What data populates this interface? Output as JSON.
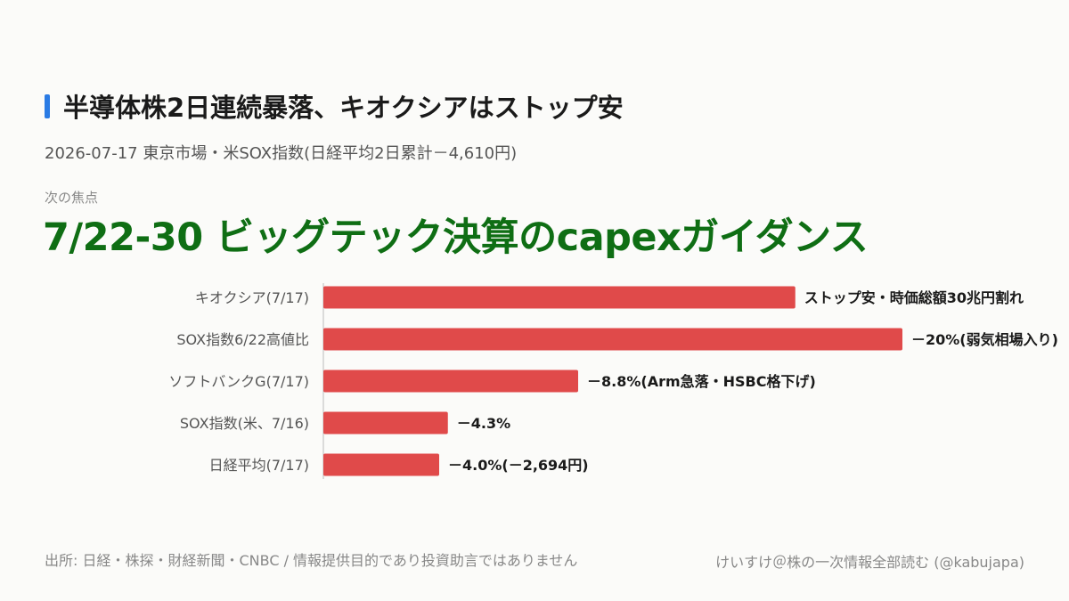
{
  "header": {
    "title": "半導体株2日連続暴落、キオクシアはストップ安",
    "subtitle": "2026-07-17 東京市場・米SOX指数(日経平均2日累計－4,610円)",
    "focus_label": "次の焦点",
    "focus_text": "7/22-30 ビッグテック決算のcapexガイダンス"
  },
  "chart_data": {
    "type": "bar",
    "orientation": "horizontal",
    "categories": [
      "キオクシア(7/17)",
      "SOX指数6/22高値比",
      "ソフトバンクG(7/17)",
      "SOX指数(米、7/16)",
      "日経平均(7/17)"
    ],
    "values": [
      16.3,
      20,
      8.8,
      4.3,
      4.0
    ],
    "value_labels": [
      "ストップ安・時価総額30兆円割れ",
      "－20%(弱気相場入り)",
      "－8.8%(Arm急落・HSBC格下げ)",
      "－4.3%",
      "－4.0%(－2,694円)"
    ],
    "bar_color": "#e04a4a",
    "grid": false
  },
  "footer": {
    "source": "出所: 日経・株探・財経新聞・CNBC / 情報提供目的であり投資助言ではありません",
    "credit": "けいすけ＠株の一次情報全部読む (@kabujapa)"
  }
}
